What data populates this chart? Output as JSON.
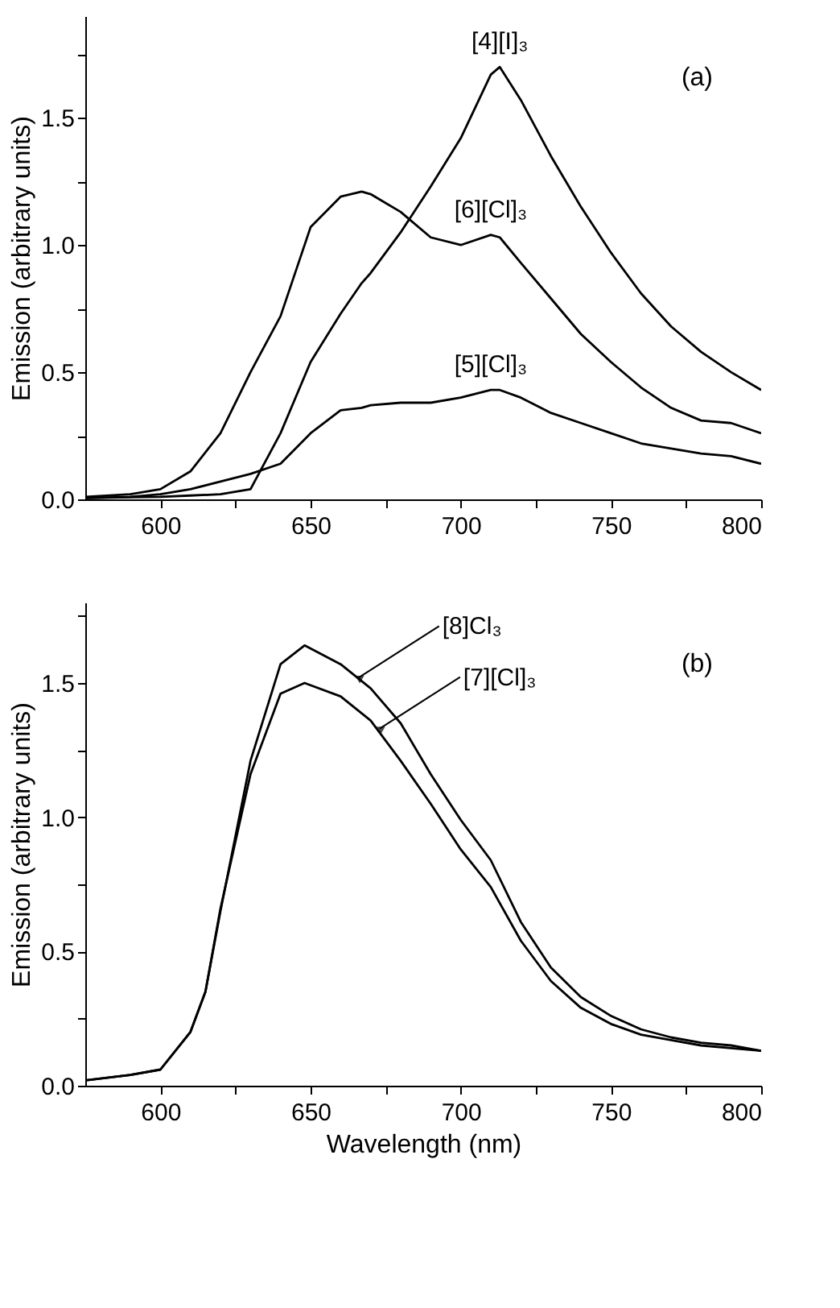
{
  "chart_data": [
    {
      "type": "line",
      "ylabel": "Emission (arbitrary units)",
      "xlim": [
        575,
        800
      ],
      "ylim": [
        0,
        1.9
      ],
      "xticks": [
        600,
        {
          "value": 625,
          "label": null
        },
        650,
        {
          "value": 675,
          "label": null
        },
        700,
        {
          "value": 725,
          "label": null
        },
        750,
        {
          "value": 775,
          "label": null
        },
        800
      ],
      "yticks": [
        {
          "value": 0,
          "label": "0.0"
        },
        {
          "value": 0.25,
          "label": null
        },
        {
          "value": 0.5,
          "label": "0.5"
        },
        {
          "value": 0.75,
          "label": null
        },
        {
          "value": 1,
          "label": "1.0"
        },
        {
          "value": 1.25,
          "label": null
        },
        {
          "value": 1.5,
          "label": "1.5"
        },
        {
          "value": 1.75,
          "label": null
        }
      ],
      "grid": false,
      "legend": false,
      "marker": "none",
      "line_style": "solid",
      "x": [
        575,
        590,
        600,
        610,
        620,
        630,
        640,
        650,
        660,
        667,
        670,
        680,
        690,
        700,
        710,
        713,
        720,
        730,
        740,
        750,
        760,
        770,
        780,
        790,
        800
      ],
      "series": [
        {
          "color": "#000000",
          "values": [
            0.005,
            0.008,
            0.01,
            0.015,
            0.02,
            0.04,
            0.26,
            0.54,
            0.73,
            0.85,
            0.89,
            1.05,
            1.23,
            1.42,
            1.67,
            1.7,
            1.57,
            1.35,
            1.15,
            0.97,
            0.81,
            0.68,
            0.58,
            0.5,
            0.43
          ]
        },
        {
          "color": "#000000",
          "values": [
            0.01,
            0.02,
            0.04,
            0.11,
            0.26,
            0.5,
            0.72,
            1.07,
            1.19,
            1.21,
            1.2,
            1.13,
            1.03,
            1.0,
            1.04,
            1.03,
            0.93,
            0.79,
            0.65,
            0.54,
            0.44,
            0.36,
            0.31,
            0.3,
            0.26
          ]
        },
        {
          "color": "#000000",
          "values": [
            0.005,
            0.01,
            0.02,
            0.04,
            0.07,
            0.1,
            0.14,
            0.26,
            0.35,
            0.36,
            0.37,
            0.38,
            0.38,
            0.4,
            0.43,
            0.43,
            0.4,
            0.34,
            0.3,
            0.26,
            0.22,
            0.2,
            0.18,
            0.17,
            0.14
          ]
        }
      ],
      "annotations": [
        {
          "text": "[4][I]₃",
          "x": 713,
          "y": 1.7
        },
        {
          "text": "[6][Cl]₃",
          "x": 710,
          "y": 1.04
        },
        {
          "text": "[5][Cl]₃",
          "x": 710,
          "y": 0.43
        },
        "(a)"
      ]
    },
    {
      "type": "line",
      "xlabel": "Wavelength (nm)",
      "ylabel": "Emission (arbitrary units)",
      "xlim": [
        575,
        800
      ],
      "ylim": [
        0,
        1.8
      ],
      "xticks": [
        600,
        {
          "value": 625,
          "label": null
        },
        650,
        {
          "value": 675,
          "label": null
        },
        700,
        {
          "value": 725,
          "label": null
        },
        750,
        {
          "value": 775,
          "label": null
        },
        800
      ],
      "yticks": [
        {
          "value": 0,
          "label": "0.0"
        },
        {
          "value": 0.25,
          "label": null
        },
        {
          "value": 0.5,
          "label": "0.5"
        },
        {
          "value": 0.75,
          "label": null
        },
        {
          "value": 1,
          "label": "1.0"
        },
        {
          "value": 1.25,
          "label": null
        },
        {
          "value": 1.5,
          "label": "1.5"
        },
        {
          "value": 1.75,
          "label": null
        }
      ],
      "grid": false,
      "legend": false,
      "marker": "none",
      "line_style": "solid",
      "x": [
        575,
        590,
        600,
        610,
        615,
        620,
        630,
        640,
        648,
        660,
        670,
        680,
        690,
        700,
        710,
        720,
        730,
        740,
        750,
        760,
        770,
        780,
        790,
        800
      ],
      "series": [
        {
          "color": "#000000",
          "values": [
            0.02,
            0.04,
            0.06,
            0.2,
            0.35,
            0.65,
            1.21,
            1.57,
            1.64,
            1.57,
            1.48,
            1.35,
            1.16,
            0.99,
            0.84,
            0.61,
            0.44,
            0.33,
            0.26,
            0.21,
            0.18,
            0.16,
            0.15,
            0.13
          ]
        },
        {
          "color": "#000000",
          "values": [
            0.02,
            0.04,
            0.06,
            0.2,
            0.35,
            0.66,
            1.16,
            1.46,
            1.5,
            1.45,
            1.36,
            1.21,
            1.05,
            0.88,
            0.74,
            0.54,
            0.39,
            0.29,
            0.23,
            0.19,
            0.17,
            0.15,
            0.14,
            0.13
          ]
        }
      ],
      "annotations": [
        {
          "text": "[8]Cl₃",
          "x": 666,
          "y": 1.52
        },
        {
          "text": "[7][Cl]₃",
          "x": 673,
          "y": 1.33
        },
        "(b)"
      ]
    }
  ]
}
